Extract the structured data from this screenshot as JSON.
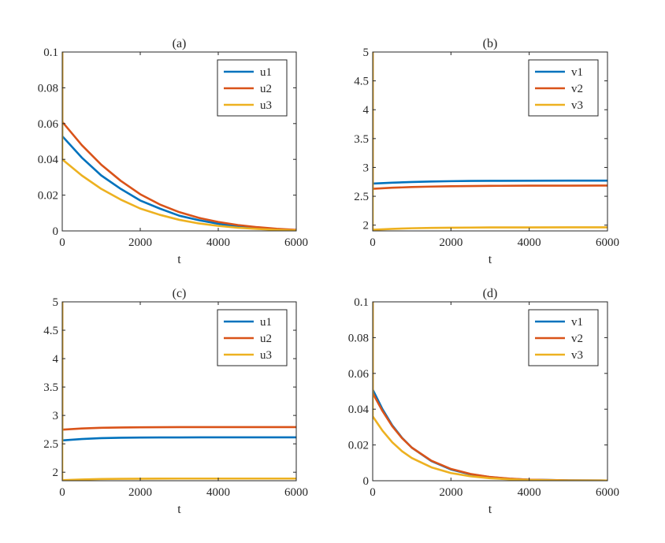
{
  "chart_data": [
    {
      "type": "line",
      "title": "(a)",
      "xlabel": "t",
      "ylabel": "",
      "xlim": [
        0,
        6000
      ],
      "ylim": [
        0,
        0.1
      ],
      "xticks": [
        0,
        2000,
        4000,
        6000
      ],
      "xtick_labels": [
        "0",
        "2000",
        "4000",
        "6000"
      ],
      "yticks": [
        0,
        0.02,
        0.04,
        0.06,
        0.08,
        0.1
      ],
      "ytick_labels": [
        "0",
        "0.02",
        "0.04",
        "0.06",
        "0.08",
        "0.1"
      ],
      "legend_position": "top-right",
      "grid": false,
      "series": [
        {
          "name": "u1",
          "color": "#0072BD",
          "x": [
            0,
            500,
            1000,
            1500,
            2000,
            2500,
            3000,
            3500,
            4000,
            4500,
            5000,
            5500,
            6000
          ],
          "y": [
            0.053,
            0.041,
            0.031,
            0.0235,
            0.017,
            0.0125,
            0.0085,
            0.006,
            0.004,
            0.0025,
            0.0015,
            0.0008,
            0.0004
          ]
        },
        {
          "name": "u2",
          "color": "#D95319",
          "x": [
            0,
            500,
            1000,
            1500,
            2000,
            2500,
            3000,
            3500,
            4000,
            4500,
            5000,
            5500,
            6000
          ],
          "y": [
            0.061,
            0.048,
            0.037,
            0.028,
            0.0205,
            0.0148,
            0.0105,
            0.0073,
            0.005,
            0.0033,
            0.0021,
            0.0012,
            0.0006
          ]
        },
        {
          "name": "u3",
          "color": "#EDB120",
          "x": [
            0,
            500,
            1000,
            1500,
            2000,
            2500,
            3000,
            3500,
            4000,
            4500,
            5000,
            5500,
            6000
          ],
          "y": [
            0.04,
            0.031,
            0.0235,
            0.0175,
            0.0125,
            0.009,
            0.0062,
            0.0042,
            0.0028,
            0.0018,
            0.0011,
            0.0006,
            0.0003
          ]
        }
      ]
    },
    {
      "type": "line",
      "title": "(b)",
      "xlabel": "t",
      "ylabel": "",
      "xlim": [
        0,
        6000
      ],
      "ylim": [
        1.9,
        5
      ],
      "xticks": [
        0,
        2000,
        4000,
        6000
      ],
      "xtick_labels": [
        "0",
        "2000",
        "4000",
        "6000"
      ],
      "yticks": [
        2,
        2.5,
        3,
        3.5,
        4,
        4.5,
        5
      ],
      "ytick_labels": [
        "2",
        "2.5",
        "3",
        "3.5",
        "4",
        "4.5",
        "5"
      ],
      "legend_position": "top-right",
      "grid": false,
      "series": [
        {
          "name": "v1",
          "color": "#0072BD",
          "x": [
            0,
            500,
            1000,
            1500,
            2000,
            2500,
            3000,
            4000,
            5000,
            6000
          ],
          "y": [
            2.72,
            2.735,
            2.748,
            2.756,
            2.762,
            2.766,
            2.768,
            2.77,
            2.771,
            2.771
          ]
        },
        {
          "name": "v2",
          "color": "#D95319",
          "x": [
            0,
            500,
            1000,
            1500,
            2000,
            2500,
            3000,
            4000,
            5000,
            6000
          ],
          "y": [
            2.63,
            2.648,
            2.66,
            2.668,
            2.674,
            2.678,
            2.681,
            2.684,
            2.685,
            2.686
          ]
        },
        {
          "name": "v3",
          "color": "#EDB120",
          "x": [
            0,
            500,
            1000,
            1500,
            2000,
            2500,
            3000,
            4000,
            5000,
            6000
          ],
          "y": [
            1.92,
            1.935,
            1.946,
            1.952,
            1.956,
            1.958,
            1.96,
            1.961,
            1.962,
            1.962
          ]
        }
      ]
    },
    {
      "type": "line",
      "title": "(c)",
      "xlabel": "t",
      "ylabel": "",
      "xlim": [
        0,
        6000
      ],
      "ylim": [
        1.85,
        5
      ],
      "xticks": [
        0,
        2000,
        4000,
        6000
      ],
      "xtick_labels": [
        "0",
        "2000",
        "4000",
        "6000"
      ],
      "yticks": [
        2,
        2.5,
        3,
        3.5,
        4,
        4.5,
        5
      ],
      "ytick_labels": [
        "2",
        "2.5",
        "3",
        "3.5",
        "4",
        "4.5",
        "5"
      ],
      "legend_position": "top-right",
      "grid": false,
      "series": [
        {
          "name": "u1",
          "color": "#0072BD",
          "x": [
            0,
            500,
            1000,
            1500,
            2000,
            2500,
            3000,
            4000,
            5000,
            6000
          ],
          "y": [
            2.56,
            2.585,
            2.6,
            2.607,
            2.61,
            2.612,
            2.613,
            2.614,
            2.614,
            2.614
          ]
        },
        {
          "name": "u2",
          "color": "#D95319",
          "x": [
            0,
            500,
            1000,
            1500,
            2000,
            2500,
            3000,
            4000,
            5000,
            6000
          ],
          "y": [
            2.75,
            2.77,
            2.782,
            2.788,
            2.791,
            2.793,
            2.794,
            2.795,
            2.795,
            2.795
          ]
        },
        {
          "name": "u3",
          "color": "#EDB120",
          "x": [
            0,
            500,
            1000,
            1500,
            2000,
            2500,
            3000,
            4000,
            5000,
            6000
          ],
          "y": [
            1.86,
            1.872,
            1.88,
            1.884,
            1.886,
            1.887,
            1.888,
            1.888,
            1.888,
            1.888
          ]
        }
      ]
    },
    {
      "type": "line",
      "title": "(d)",
      "xlabel": "t",
      "ylabel": "",
      "xlim": [
        0,
        6000
      ],
      "ylim": [
        0,
        0.1
      ],
      "xticks": [
        0,
        2000,
        4000,
        6000
      ],
      "xtick_labels": [
        "0",
        "2000",
        "4000",
        "6000"
      ],
      "yticks": [
        0,
        0.02,
        0.04,
        0.06,
        0.08,
        0.1
      ],
      "ytick_labels": [
        "0",
        "0.02",
        "0.04",
        "0.06",
        "0.08",
        "0.1"
      ],
      "legend_position": "top-right",
      "grid": false,
      "series": [
        {
          "name": "v1",
          "color": "#0072BD",
          "x": [
            0,
            250,
            500,
            750,
            1000,
            1500,
            2000,
            2500,
            3000,
            3500,
            4000,
            5000,
            6000
          ],
          "y": [
            0.051,
            0.04,
            0.031,
            0.024,
            0.0185,
            0.011,
            0.0063,
            0.0036,
            0.002,
            0.0011,
            0.0006,
            0.0002,
            0.0001
          ]
        },
        {
          "name": "v2",
          "color": "#D95319",
          "x": [
            0,
            250,
            500,
            750,
            1000,
            1500,
            2000,
            2500,
            3000,
            3500,
            4000,
            5000,
            6000
          ],
          "y": [
            0.049,
            0.039,
            0.0305,
            0.0238,
            0.0185,
            0.0112,
            0.0066,
            0.0038,
            0.0021,
            0.0012,
            0.0006,
            0.0002,
            0.0001
          ]
        },
        {
          "name": "v3",
          "color": "#EDB120",
          "x": [
            0,
            250,
            500,
            750,
            1000,
            1500,
            2000,
            2500,
            3000,
            3500,
            4000,
            5000,
            6000
          ],
          "y": [
            0.036,
            0.028,
            0.0215,
            0.0165,
            0.0127,
            0.0075,
            0.0043,
            0.0025,
            0.0014,
            0.0008,
            0.0004,
            0.0001,
            0.0001
          ]
        }
      ]
    }
  ]
}
